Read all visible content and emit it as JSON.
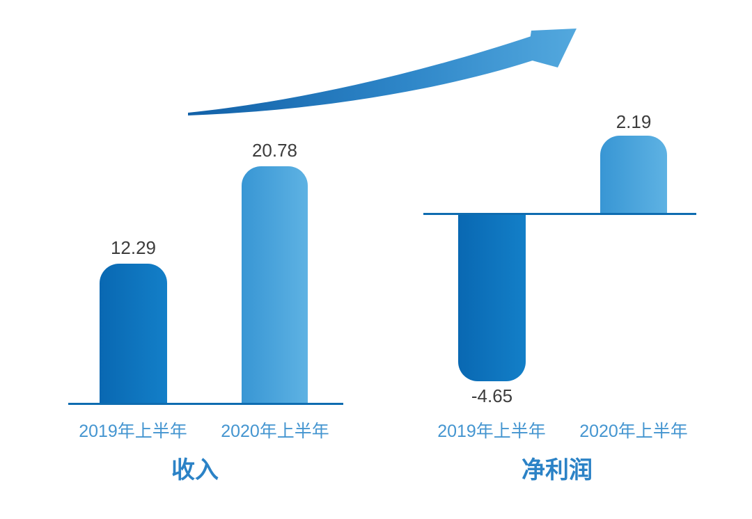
{
  "page": {
    "background": "#ffffff",
    "description_not_rendered": ""
  },
  "colors": {
    "bar_2019_gradient": [
      "#0968b2",
      "#137fc8"
    ],
    "bar_2020_gradient": [
      "#3896d4",
      "#5eb2e3"
    ],
    "axis_line": "#0e6cb0",
    "value_label": "#3c3c3c",
    "axis_label": "#4495d0",
    "chart_title": "#2b82c6",
    "arrow_gradient": [
      "#1160a7",
      "#55aadf"
    ]
  },
  "icons": {
    "growth_arrow": "upward-curved-swoosh-arrow"
  },
  "chart_data": [
    {
      "type": "bar",
      "title": "收入",
      "categories": [
        "2019年上半年",
        "2020年上半年"
      ],
      "values": [
        12.29,
        20.78
      ],
      "value_labels": [
        "12.29",
        "20.78"
      ],
      "series_colors": [
        "#0c72be",
        "#45a3da"
      ],
      "xlabel": "",
      "ylabel": "",
      "ylim": [
        0,
        22
      ],
      "grid": false,
      "legend": false,
      "axis": "baseline-only"
    },
    {
      "type": "bar",
      "title": "净利润",
      "categories": [
        "2019年上半年",
        "2020年上半年"
      ],
      "values": [
        -4.65,
        2.19
      ],
      "value_labels": [
        "-4.65",
        "2.19"
      ],
      "series_colors": [
        "#0c72be",
        "#45a3da"
      ],
      "xlabel": "",
      "ylabel": "",
      "ylim": [
        -5,
        3
      ],
      "grid": false,
      "legend": false,
      "axis": "baseline-only"
    }
  ]
}
